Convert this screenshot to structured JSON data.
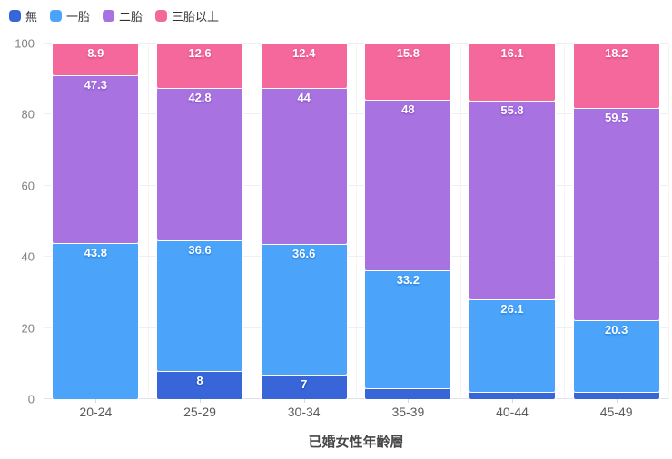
{
  "chart_data": {
    "type": "bar",
    "stacked": true,
    "title": "",
    "xlabel": "已婚女性年齡層",
    "ylabel": "",
    "categories": [
      "20-24",
      "25-29",
      "30-34",
      "35-39",
      "40-44",
      "45-49"
    ],
    "series": [
      {
        "name": "無",
        "color": "#3866D8",
        "label_shadow": "#1B44AE",
        "values": [
          0,
          8,
          7,
          3,
          2,
          2
        ]
      },
      {
        "name": "一胎",
        "color": "#4BA4FA",
        "label_shadow": "#1576D4",
        "values": [
          43.8,
          36.6,
          36.6,
          33.2,
          26.1,
          20.3
        ]
      },
      {
        "name": "二胎",
        "color": "#A873E0",
        "label_shadow": "#7E46C4",
        "values": [
          47.3,
          42.8,
          44,
          48,
          55.8,
          59.5
        ]
      },
      {
        "name": "三胎以上",
        "color": "#F4689C",
        "label_shadow": "#D43D77",
        "values": [
          8.9,
          12.6,
          12.4,
          15.8,
          16.1,
          18.2
        ]
      }
    ],
    "ylim": [
      0,
      100
    ],
    "y_ticks": [
      0,
      20,
      40,
      60,
      80,
      100
    ],
    "label_min": 5,
    "grid": true,
    "legend_position": "top-left",
    "colors": {
      "grid": "#f0f0f3",
      "axis_line": "#e2e2e8",
      "y_tick_text": "#818181",
      "x_tick_text": "#5b5b5b",
      "title_text": "#474747",
      "legend_text": "#333333",
      "background": "#ffffff"
    }
  }
}
